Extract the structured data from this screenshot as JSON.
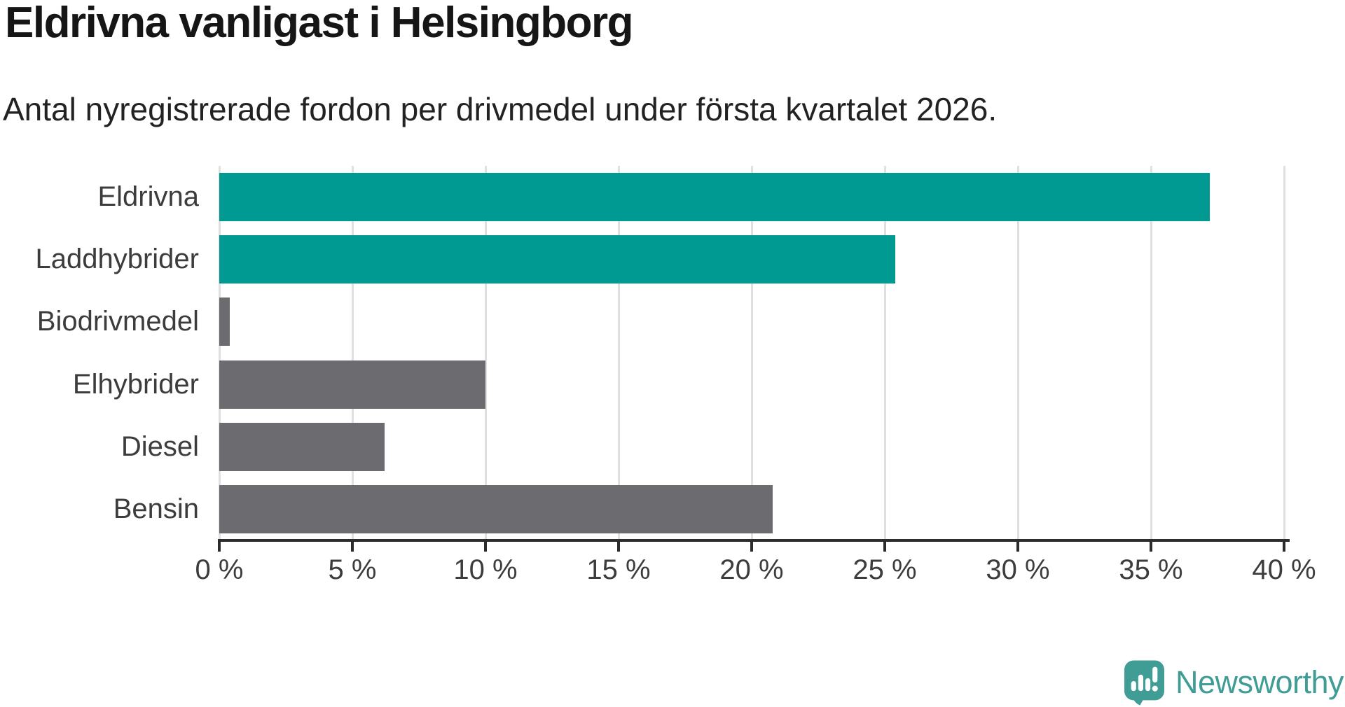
{
  "chart_data": {
    "type": "bar",
    "orientation": "horizontal",
    "title": "Eldrivna vanligast i Helsingborg",
    "subtitle": "Antal nyregistrerade fordon per drivmedel under första kvartalet 2026.",
    "categories": [
      "Eldrivna",
      "Laddhybrider",
      "Biodrivmedel",
      "Elhybrider",
      "Diesel",
      "Bensin"
    ],
    "values": [
      37.2,
      25.4,
      0.4,
      10,
      6.2,
      20.8
    ],
    "unit": "%",
    "xlim": [
      0,
      40
    ],
    "x_tick_step": 5,
    "x_tick_labels": [
      "0 %",
      "5 %",
      "10 %",
      "15 %",
      "20 %",
      "25 %",
      "30 %",
      "35 %",
      "40 %"
    ],
    "grid": true,
    "legend": false,
    "bar_colors": [
      "#009a92",
      "#009a92",
      "#6b6b70",
      "#6b6b70",
      "#6b6b70",
      "#6b6b70"
    ]
  },
  "branding": {
    "logo_text": "Newsworthy",
    "logo_icon": "speech-bubble-bar-chart-icon",
    "logo_color": "#3f9d95"
  },
  "colors": {
    "accent_teal": "#009a92",
    "neutral_gray": "#6b6b70",
    "axis": "#2c2c2c",
    "gridline": "#e0e0e0",
    "label_text": "#3c3c3c",
    "title_text": "#161616",
    "background": "#ffffff"
  }
}
